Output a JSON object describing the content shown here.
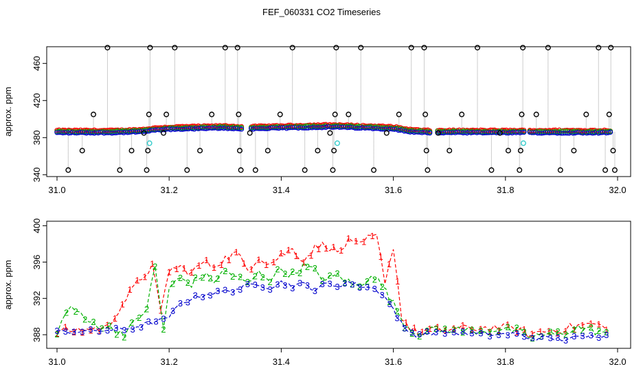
{
  "title": "FEF_060331  CO2 Timeseries",
  "colors": {
    "black": "#000000",
    "red": "#ff0000",
    "green": "#00b000",
    "blue": "#0000cc",
    "cyan": "#33cccc",
    "grey": "#9a9a9a"
  },
  "chart_data": [
    {
      "type": "scatter",
      "ylabel": "approx. ppm",
      "xlim": [
        31.0,
        32.0
      ],
      "ylim": [
        338,
        478
      ],
      "xticks": [
        31.0,
        31.2,
        31.4,
        31.6,
        31.8,
        32.0
      ],
      "xtick_labels": [
        "31.0",
        "31.2",
        "31.4",
        "31.6",
        "31.8",
        "32.0"
      ],
      "yticks": [
        340,
        380,
        420,
        460
      ],
      "ytick_labels": [
        "340",
        "380",
        "420",
        "460"
      ],
      "base_series": [
        {
          "x": 31.0,
          "y": 386
        },
        {
          "x": 31.05,
          "y": 386
        },
        {
          "x": 31.1,
          "y": 386
        },
        {
          "x": 31.15,
          "y": 387
        },
        {
          "x": 31.18,
          "y": 389
        },
        {
          "x": 31.22,
          "y": 390
        },
        {
          "x": 31.3,
          "y": 391
        },
        {
          "x": 31.33,
          "y": 390
        },
        {
          "x": 31.4,
          "y": 391
        },
        {
          "x": 31.48,
          "y": 392
        },
        {
          "x": 31.5,
          "y": 392
        },
        {
          "x": 31.55,
          "y": 391
        },
        {
          "x": 31.6,
          "y": 390
        },
        {
          "x": 31.63,
          "y": 387
        },
        {
          "x": 31.66,
          "y": 386
        },
        {
          "x": 31.7,
          "y": 386
        },
        {
          "x": 31.75,
          "y": 386
        },
        {
          "x": 31.82,
          "y": 386
        },
        {
          "x": 31.84,
          "y": 386
        },
        {
          "x": 31.9,
          "y": 386
        },
        {
          "x": 31.99,
          "y": 386
        }
      ],
      "outliers": [
        {
          "x": 31.02,
          "y": 345
        },
        {
          "x": 31.045,
          "y": 366
        },
        {
          "x": 31.065,
          "y": 405
        },
        {
          "x": 31.09,
          "y": 477
        },
        {
          "x": 31.112,
          "y": 345
        },
        {
          "x": 31.133,
          "y": 366
        },
        {
          "x": 31.155,
          "y": 385
        },
        {
          "x": 31.16,
          "y": 345
        },
        {
          "x": 31.162,
          "y": 366
        },
        {
          "x": 31.164,
          "y": 405
        },
        {
          "x": 31.166,
          "y": 477
        },
        {
          "x": 31.19,
          "y": 385
        },
        {
          "x": 31.195,
          "y": 405
        },
        {
          "x": 31.21,
          "y": 477
        },
        {
          "x": 31.232,
          "y": 345
        },
        {
          "x": 31.255,
          "y": 366
        },
        {
          "x": 31.276,
          "y": 405
        },
        {
          "x": 31.3,
          "y": 477
        },
        {
          "x": 31.322,
          "y": 477
        },
        {
          "x": 31.324,
          "y": 405
        },
        {
          "x": 31.326,
          "y": 366
        },
        {
          "x": 31.328,
          "y": 345
        },
        {
          "x": 31.344,
          "y": 385
        },
        {
          "x": 31.354,
          "y": 345
        },
        {
          "x": 31.376,
          "y": 366
        },
        {
          "x": 31.398,
          "y": 405
        },
        {
          "x": 31.42,
          "y": 477
        },
        {
          "x": 31.442,
          "y": 345
        },
        {
          "x": 31.465,
          "y": 366
        },
        {
          "x": 31.487,
          "y": 385
        },
        {
          "x": 31.492,
          "y": 345
        },
        {
          "x": 31.494,
          "y": 366
        },
        {
          "x": 31.496,
          "y": 405
        },
        {
          "x": 31.498,
          "y": 477
        },
        {
          "x": 31.52,
          "y": 405
        },
        {
          "x": 31.542,
          "y": 477
        },
        {
          "x": 31.565,
          "y": 345
        },
        {
          "x": 31.588,
          "y": 385
        },
        {
          "x": 31.61,
          "y": 405
        },
        {
          "x": 31.632,
          "y": 477
        },
        {
          "x": 31.655,
          "y": 477
        },
        {
          "x": 31.657,
          "y": 405
        },
        {
          "x": 31.659,
          "y": 366
        },
        {
          "x": 31.661,
          "y": 345
        },
        {
          "x": 31.68,
          "y": 385
        },
        {
          "x": 31.7,
          "y": 366
        },
        {
          "x": 31.722,
          "y": 405
        },
        {
          "x": 31.75,
          "y": 477
        },
        {
          "x": 31.775,
          "y": 345
        },
        {
          "x": 31.79,
          "y": 385
        },
        {
          "x": 31.805,
          "y": 366
        },
        {
          "x": 31.825,
          "y": 345
        },
        {
          "x": 31.827,
          "y": 366
        },
        {
          "x": 31.829,
          "y": 405
        },
        {
          "x": 31.831,
          "y": 477
        },
        {
          "x": 31.855,
          "y": 405
        },
        {
          "x": 31.876,
          "y": 477
        },
        {
          "x": 31.898,
          "y": 345
        },
        {
          "x": 31.922,
          "y": 366
        },
        {
          "x": 31.944,
          "y": 405
        },
        {
          "x": 31.966,
          "y": 477
        },
        {
          "x": 31.978,
          "y": 345
        },
        {
          "x": 31.985,
          "y": 405
        },
        {
          "x": 31.988,
          "y": 477
        },
        {
          "x": 31.992,
          "y": 366
        },
        {
          "x": 31.995,
          "y": 345
        }
      ],
      "cyan_points": [
        {
          "x": 31.165,
          "y": 374
        },
        {
          "x": 31.5,
          "y": 374
        },
        {
          "x": 31.832,
          "y": 374
        }
      ]
    },
    {
      "type": "line",
      "ylabel": "approx. ppm",
      "xlim": [
        31.0,
        32.0
      ],
      "ylim": [
        386.5,
        400.5
      ],
      "xticks": [
        31.0,
        31.2,
        31.4,
        31.6,
        31.8,
        32.0
      ],
      "xtick_labels": [
        "31.0",
        "31.2",
        "31.4",
        "31.6",
        "31.8",
        "32.0"
      ],
      "yticks": [
        388,
        392,
        396,
        400
      ],
      "ytick_labels": [
        "388",
        "392",
        "396",
        "400"
      ],
      "series": [
        {
          "name": "1",
          "points": [
            [
              31.0,
              388.4
            ],
            [
              31.03,
              388.5
            ],
            [
              31.06,
              388.6
            ],
            [
              31.09,
              388.8
            ],
            [
              31.11,
              390.8
            ],
            [
              31.13,
              392.6
            ],
            [
              31.15,
              394.2
            ],
            [
              31.17,
              395.6
            ],
            [
              31.185,
              390.4
            ],
            [
              31.2,
              395.2
            ],
            [
              31.22,
              395.4
            ],
            [
              31.24,
              394.8
            ],
            [
              31.26,
              396.0
            ],
            [
              31.28,
              395.6
            ],
            [
              31.3,
              396.4
            ],
            [
              31.32,
              397.0
            ],
            [
              31.34,
              395.2
            ],
            [
              31.36,
              396.6
            ],
            [
              31.38,
              395.8
            ],
            [
              31.4,
              396.8
            ],
            [
              31.42,
              397.4
            ],
            [
              31.44,
              396.2
            ],
            [
              31.46,
              397.6
            ],
            [
              31.48,
              398.0
            ],
            [
              31.5,
              397.0
            ],
            [
              31.52,
              398.2
            ],
            [
              31.54,
              397.8
            ],
            [
              31.555,
              398.6
            ],
            [
              31.57,
              398.8
            ],
            [
              31.585,
              394.0
            ],
            [
              31.6,
              397.6
            ],
            [
              31.615,
              390.0
            ],
            [
              31.63,
              388.6
            ],
            [
              31.645,
              388.2
            ],
            [
              31.665,
              388.5
            ],
            [
              31.7,
              388.6
            ],
            [
              31.74,
              388.7
            ],
            [
              31.78,
              388.8
            ],
            [
              31.82,
              388.7
            ],
            [
              31.84,
              388.0
            ],
            [
              31.87,
              388.4
            ],
            [
              31.9,
              388.6
            ],
            [
              31.93,
              389.0
            ],
            [
              31.96,
              389.2
            ],
            [
              31.98,
              388.6
            ]
          ]
        },
        {
          "name": "2",
          "points": [
            [
              31.0,
              388.5
            ],
            [
              31.025,
              391.2
            ],
            [
              31.05,
              389.6
            ],
            [
              31.08,
              389.0
            ],
            [
              31.1,
              388.6
            ],
            [
              31.12,
              388.2
            ],
            [
              31.14,
              389.4
            ],
            [
              31.16,
              391.0
            ],
            [
              31.175,
              395.4
            ],
            [
              31.19,
              388.6
            ],
            [
              31.2,
              393.2
            ],
            [
              31.22,
              394.2
            ],
            [
              31.24,
              393.6
            ],
            [
              31.26,
              394.6
            ],
            [
              31.28,
              394.0
            ],
            [
              31.3,
              395.0
            ],
            [
              31.32,
              394.4
            ],
            [
              31.34,
              393.6
            ],
            [
              31.36,
              394.8
            ],
            [
              31.38,
              394.2
            ],
            [
              31.4,
              395.2
            ],
            [
              31.42,
              394.6
            ],
            [
              31.44,
              395.6
            ],
            [
              31.46,
              395.0
            ],
            [
              31.48,
              394.0
            ],
            [
              31.5,
              394.6
            ],
            [
              31.52,
              393.8
            ],
            [
              31.54,
              393.2
            ],
            [
              31.56,
              394.8
            ],
            [
              31.58,
              393.4
            ],
            [
              31.6,
              391.4
            ],
            [
              31.62,
              389.2
            ],
            [
              31.64,
              388.2
            ],
            [
              31.66,
              388.4
            ],
            [
              31.7,
              388.6
            ],
            [
              31.74,
              388.4
            ],
            [
              31.78,
              388.6
            ],
            [
              31.82,
              388.4
            ],
            [
              31.84,
              387.8
            ],
            [
              31.88,
              388.0
            ],
            [
              31.9,
              388.2
            ],
            [
              31.93,
              388.8
            ],
            [
              31.96,
              388.4
            ],
            [
              31.98,
              388.3
            ]
          ]
        },
        {
          "name": "3",
          "points": [
            [
              31.0,
              388.3
            ],
            [
              31.03,
              388.4
            ],
            [
              31.06,
              388.4
            ],
            [
              31.09,
              388.5
            ],
            [
              31.12,
              388.6
            ],
            [
              31.15,
              389.0
            ],
            [
              31.17,
              389.4
            ],
            [
              31.19,
              389.6
            ],
            [
              31.2,
              390.0
            ],
            [
              31.22,
              391.4
            ],
            [
              31.24,
              392.0
            ],
            [
              31.26,
              392.4
            ],
            [
              31.28,
              392.6
            ],
            [
              31.3,
              392.8
            ],
            [
              31.32,
              393.0
            ],
            [
              31.34,
              393.4
            ],
            [
              31.36,
              393.6
            ],
            [
              31.38,
              393.2
            ],
            [
              31.4,
              393.8
            ],
            [
              31.42,
              393.4
            ],
            [
              31.44,
              393.6
            ],
            [
              31.46,
              393.0
            ],
            [
              31.48,
              393.6
            ],
            [
              31.5,
              393.4
            ],
            [
              31.52,
              393.8
            ],
            [
              31.54,
              393.4
            ],
            [
              31.56,
              393.2
            ],
            [
              31.58,
              392.6
            ],
            [
              31.6,
              390.8
            ],
            [
              31.62,
              388.6
            ],
            [
              31.64,
              388.0
            ],
            [
              31.66,
              388.2
            ],
            [
              31.7,
              388.3
            ],
            [
              31.74,
              388.1
            ],
            [
              31.78,
              388.0
            ],
            [
              31.82,
              388.1
            ],
            [
              31.84,
              387.7
            ],
            [
              31.88,
              387.6
            ],
            [
              31.9,
              387.5
            ],
            [
              31.93,
              387.7
            ],
            [
              31.96,
              387.9
            ],
            [
              31.98,
              388.0
            ]
          ]
        }
      ]
    }
  ]
}
